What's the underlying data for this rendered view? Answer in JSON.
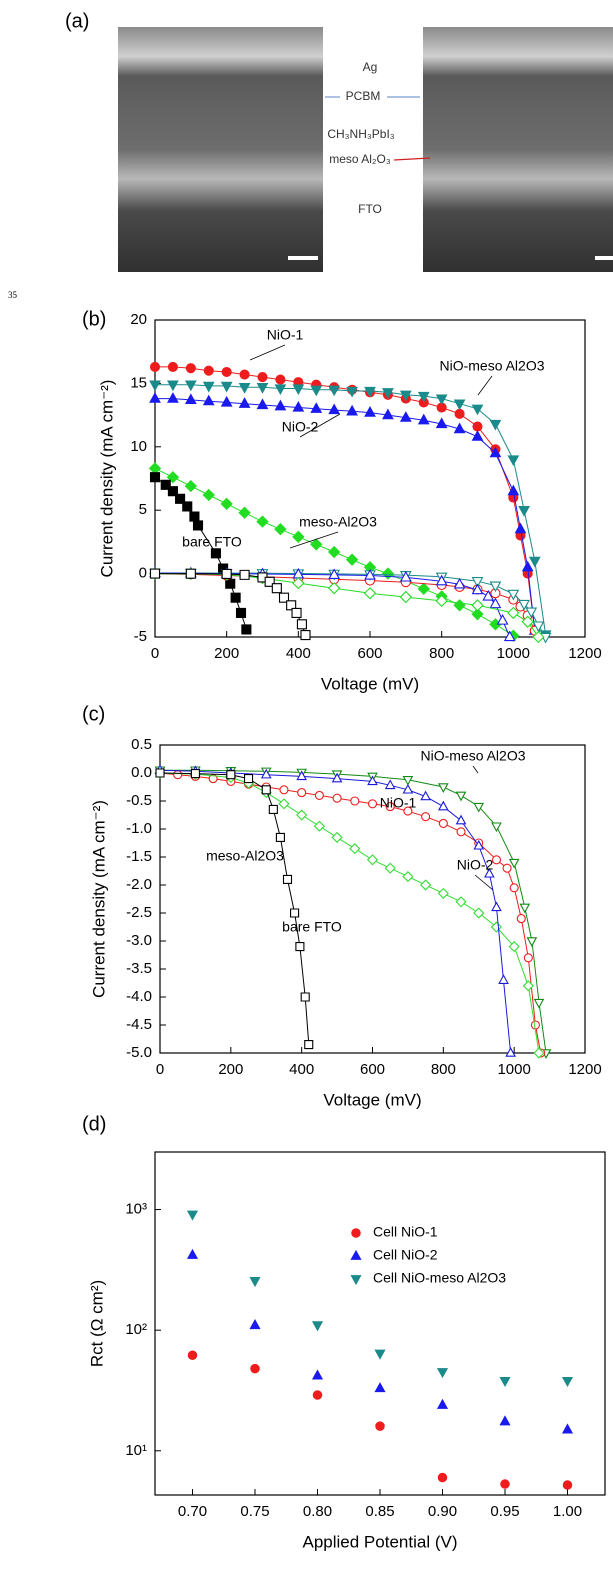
{
  "panel_a": {
    "label": "(a)",
    "layers": [
      "Ag",
      "PCBM",
      "CH₃NH₃PbI₃",
      "meso Al₂O₃",
      "FTO"
    ],
    "page_number": "35"
  },
  "chart_data": [
    {
      "type": "line",
      "panel_label": "(b)",
      "xlabel": "Voltage (mV)",
      "ylabel": "Current density (mA cm⁻²)",
      "xlim": [
        0,
        1200
      ],
      "xticks": [
        0,
        200,
        400,
        600,
        800,
        1000,
        1200
      ],
      "ylim": [
        -5,
        20
      ],
      "yticks": [
        -5,
        0,
        5,
        10,
        15,
        20
      ],
      "grid": false,
      "series": [
        {
          "name": "NiO-1",
          "color": "#ee1c1c",
          "marker": "circle",
          "filled": true,
          "x": [
            0,
            50,
            100,
            150,
            200,
            250,
            300,
            350,
            400,
            450,
            500,
            550,
            600,
            650,
            700,
            750,
            800,
            850,
            900,
            950,
            1000,
            1020,
            1040,
            1060
          ],
          "values": [
            16.3,
            16.3,
            16.2,
            16.0,
            15.9,
            15.7,
            15.5,
            15.3,
            15.1,
            14.9,
            14.7,
            14.5,
            14.3,
            14.1,
            13.8,
            13.5,
            13.1,
            12.6,
            11.6,
            9.8,
            6.0,
            3.0,
            0.0,
            -4.5
          ]
        },
        {
          "name": "NiO-meso Al2O3",
          "color": "#1a8a8a",
          "marker": "triangle-down",
          "filled": true,
          "x": [
            0,
            50,
            100,
            150,
            200,
            250,
            300,
            350,
            400,
            450,
            500,
            550,
            600,
            650,
            700,
            750,
            800,
            850,
            900,
            950,
            1000,
            1030,
            1060,
            1090
          ],
          "values": [
            14.9,
            14.9,
            14.9,
            14.8,
            14.8,
            14.7,
            14.7,
            14.6,
            14.6,
            14.5,
            14.5,
            14.4,
            14.4,
            14.3,
            14.1,
            14.0,
            13.8,
            13.4,
            13.0,
            11.8,
            9.0,
            5.0,
            1.0,
            -4.8
          ]
        },
        {
          "name": "NiO-2",
          "color": "#1a1aee",
          "marker": "triangle-up",
          "filled": true,
          "x": [
            0,
            50,
            100,
            150,
            200,
            250,
            300,
            350,
            400,
            450,
            500,
            550,
            600,
            650,
            700,
            750,
            800,
            850,
            900,
            950,
            1000,
            1020,
            1040,
            1060
          ],
          "values": [
            13.8,
            13.8,
            13.7,
            13.6,
            13.5,
            13.4,
            13.3,
            13.2,
            13.1,
            13.0,
            12.9,
            12.8,
            12.7,
            12.5,
            12.3,
            12.1,
            11.8,
            11.4,
            10.8,
            9.5,
            6.5,
            3.5,
            0.5,
            -4.5
          ]
        },
        {
          "name": "meso-Al2O3",
          "color": "#22dd22",
          "marker": "diamond",
          "filled": true,
          "x": [
            0,
            50,
            100,
            150,
            200,
            250,
            300,
            350,
            400,
            450,
            500,
            550,
            600,
            650,
            700,
            750,
            800,
            850,
            900,
            950,
            1000
          ],
          "values": [
            8.3,
            7.6,
            6.9,
            6.2,
            5.5,
            4.8,
            4.1,
            3.5,
            2.9,
            2.3,
            1.7,
            1.1,
            0.5,
            0.0,
            -0.6,
            -1.2,
            -1.8,
            -2.5,
            -3.2,
            -4.0,
            -4.9
          ]
        },
        {
          "name": "bare FTO",
          "color": "#000000",
          "marker": "square",
          "filled": true,
          "x": [
            0,
            30,
            50,
            70,
            90,
            110,
            120,
            170,
            190,
            210,
            225,
            240,
            255
          ],
          "values": [
            7.6,
            7.0,
            6.5,
            5.9,
            5.3,
            4.5,
            3.8,
            1.6,
            0.4,
            -0.8,
            -1.9,
            -3.1,
            -4.4
          ]
        },
        {
          "color": "#ee1c1c",
          "marker": "circle",
          "filled": false,
          "x": [
            0,
            100,
            200,
            300,
            400,
            500,
            600,
            700,
            800,
            850,
            900,
            950,
            1000,
            1020,
            1040,
            1060
          ],
          "values": [
            0,
            -0.06,
            -0.15,
            -0.25,
            -0.35,
            -0.45,
            -0.55,
            -0.68,
            -0.9,
            -1.05,
            -1.25,
            -1.55,
            -2.05,
            -2.6,
            -3.3,
            -4.5
          ]
        },
        {
          "color": "#1a8a8a",
          "marker": "triangle-down",
          "filled": false,
          "x": [
            0,
            100,
            200,
            300,
            400,
            500,
            600,
            700,
            800,
            900,
            950,
            1000,
            1030,
            1050,
            1070,
            1090
          ],
          "values": [
            0.05,
            0.05,
            0.04,
            0.03,
            0.01,
            -0.02,
            -0.06,
            -0.12,
            -0.25,
            -0.6,
            -0.95,
            -1.6,
            -2.4,
            -3.0,
            -4.1,
            -5.0
          ]
        },
        {
          "color": "#1a1aee",
          "marker": "triangle-up",
          "filled": false,
          "x": [
            0,
            100,
            200,
            300,
            400,
            500,
            600,
            700,
            800,
            850,
            900,
            930,
            950,
            970,
            990
          ],
          "values": [
            0.05,
            0.03,
            0.0,
            -0.03,
            -0.06,
            -0.1,
            -0.15,
            -0.3,
            -0.6,
            -0.85,
            -1.3,
            -1.8,
            -2.4,
            -3.7,
            -5.0
          ]
        },
        {
          "color": "#22dd22",
          "marker": "diamond",
          "filled": false,
          "x": [
            0,
            100,
            200,
            300,
            400,
            500,
            600,
            700,
            800,
            900,
            1000,
            1040,
            1070
          ],
          "values": [
            0,
            -0.02,
            -0.08,
            -0.35,
            -0.75,
            -1.15,
            -1.55,
            -1.85,
            -2.15,
            -2.5,
            -3.1,
            -3.8,
            -5.0
          ]
        },
        {
          "color": "#000000",
          "marker": "square",
          "filled": false,
          "x": [
            0,
            100,
            200,
            250,
            300,
            320,
            340,
            360,
            380,
            395,
            410,
            420
          ],
          "values": [
            0,
            -0.01,
            -0.03,
            -0.1,
            -0.3,
            -0.65,
            -1.15,
            -1.9,
            -2.5,
            -3.1,
            -4.0,
            -4.85
          ]
        }
      ]
    },
    {
      "type": "line",
      "panel_label": "(c)",
      "xlabel": "Voltage (mV)",
      "ylabel": "Current density (mA cm⁻²)",
      "xlim": [
        0,
        1200
      ],
      "xticks": [
        0,
        200,
        400,
        600,
        800,
        1000,
        1200
      ],
      "ylim": [
        -5,
        0.5
      ],
      "yticks": [
        {
          "value": -5,
          "label": "-5.0"
        },
        -4.5,
        {
          "value": -4,
          "label": "-4.0"
        },
        -3.5,
        {
          "value": -3,
          "label": "-3.0"
        },
        -2.5,
        {
          "value": -2,
          "label": "-2.0"
        },
        -1.5,
        {
          "value": -1,
          "label": "-1.0"
        },
        -0.5,
        {
          "value": 0,
          "label": "0.0"
        },
        0.5
      ],
      "grid": false,
      "series": [
        {
          "name": "NiO-meso Al2O3",
          "color": "#138a13",
          "marker": "triangle-down",
          "filled": false,
          "x": [
            0,
            100,
            200,
            300,
            400,
            500,
            600,
            700,
            800,
            850,
            900,
            950,
            1000,
            1030,
            1050,
            1070,
            1090
          ],
          "values": [
            0.05,
            0.05,
            0.04,
            0.03,
            0.01,
            -0.02,
            -0.06,
            -0.12,
            -0.25,
            -0.4,
            -0.6,
            -0.95,
            -1.6,
            -2.4,
            -3.0,
            -4.1,
            -5.0
          ]
        },
        {
          "name": "NiO-1",
          "color": "#ee1c1c",
          "marker": "circle",
          "filled": false,
          "x": [
            0,
            50,
            100,
            150,
            200,
            250,
            300,
            350,
            400,
            450,
            500,
            550,
            600,
            650,
            700,
            750,
            800,
            850,
            900,
            950,
            980,
            1000,
            1020,
            1040,
            1060,
            1075
          ],
          "values": [
            0,
            -0.03,
            -0.06,
            -0.1,
            -0.15,
            -0.2,
            -0.25,
            -0.3,
            -0.35,
            -0.4,
            -0.45,
            -0.5,
            -0.55,
            -0.6,
            -0.68,
            -0.78,
            -0.9,
            -1.05,
            -1.25,
            -1.55,
            -1.7,
            -2.05,
            -2.6,
            -3.3,
            -4.5,
            -5.0
          ]
        },
        {
          "name": "meso-Al2O3",
          "color": "#33dd33",
          "marker": "diamond",
          "filled": false,
          "x": [
            0,
            100,
            200,
            250,
            300,
            350,
            400,
            450,
            500,
            550,
            600,
            650,
            700,
            750,
            800,
            850,
            900,
            950,
            1000,
            1040,
            1070
          ],
          "values": [
            0,
            -0.02,
            -0.08,
            -0.18,
            -0.35,
            -0.55,
            -0.75,
            -0.95,
            -1.15,
            -1.35,
            -1.55,
            -1.7,
            -1.85,
            -2.0,
            -2.15,
            -2.3,
            -2.5,
            -2.75,
            -3.1,
            -3.8,
            -5.0
          ]
        },
        {
          "name": "NiO-2",
          "color": "#1a1ad6",
          "marker": "triangle-up",
          "filled": false,
          "x": [
            0,
            100,
            200,
            300,
            400,
            500,
            600,
            650,
            700,
            750,
            800,
            850,
            900,
            930,
            950,
            970,
            990
          ],
          "values": [
            0.05,
            0.03,
            0.0,
            -0.03,
            -0.06,
            -0.1,
            -0.15,
            -0.22,
            -0.3,
            -0.42,
            -0.6,
            -0.85,
            -1.3,
            -1.8,
            -2.4,
            -3.7,
            -5.0
          ]
        },
        {
          "name": "bare FTO",
          "color": "#000000",
          "marker": "square",
          "filled": false,
          "x": [
            0,
            100,
            200,
            250,
            300,
            320,
            340,
            360,
            380,
            395,
            410,
            420
          ],
          "values": [
            0,
            -0.01,
            -0.03,
            -0.1,
            -0.3,
            -0.65,
            -1.15,
            -1.9,
            -2.5,
            -3.1,
            -4.0,
            -4.85
          ]
        }
      ]
    },
    {
      "type": "scatter",
      "panel_label": "(d)",
      "xlabel": "Applied Potential (V)",
      "ylabel": "Rct (Ω cm²)",
      "xlim": [
        0.67,
        1.03
      ],
      "xticks": [
        {
          "value": 0.7,
          "label": "0.70"
        },
        0.75,
        {
          "value": 0.8,
          "label": "0.80"
        },
        0.85,
        {
          "value": 0.9,
          "label": "0.90"
        },
        0.95,
        {
          "value": 1,
          "label": "1.00"
        }
      ],
      "ylim": [
        4.3,
        3000
      ],
      "yscale": "log",
      "yticks": [
        {
          "value": 10,
          "label": "10¹"
        },
        {
          "value": 100,
          "label": "10²"
        },
        {
          "value": 1000,
          "label": "10³"
        }
      ],
      "grid": false,
      "legend": "upper right",
      "x": [
        0.7,
        0.75,
        0.8,
        0.85,
        0.9,
        0.95,
        1.0
      ],
      "series": [
        {
          "name": "Cell NiO-1",
          "color": "#ee1c1c",
          "marker": "circle",
          "filled": true,
          "values": [
            62,
            48,
            29,
            16,
            6,
            5.3,
            5.2
          ]
        },
        {
          "name": "Cell NiO-2",
          "color": "#1a1aee",
          "marker": "triangle-up",
          "filled": true,
          "values": [
            420,
            110,
            42,
            33,
            24,
            17.5,
            15
          ]
        },
        {
          "name": "Cell NiO-meso Al2O3",
          "color": "#1a8a8a",
          "marker": "triangle-down",
          "filled": true,
          "values": [
            910,
            256,
            110,
            64,
            45,
            38,
            38
          ]
        }
      ]
    }
  ]
}
